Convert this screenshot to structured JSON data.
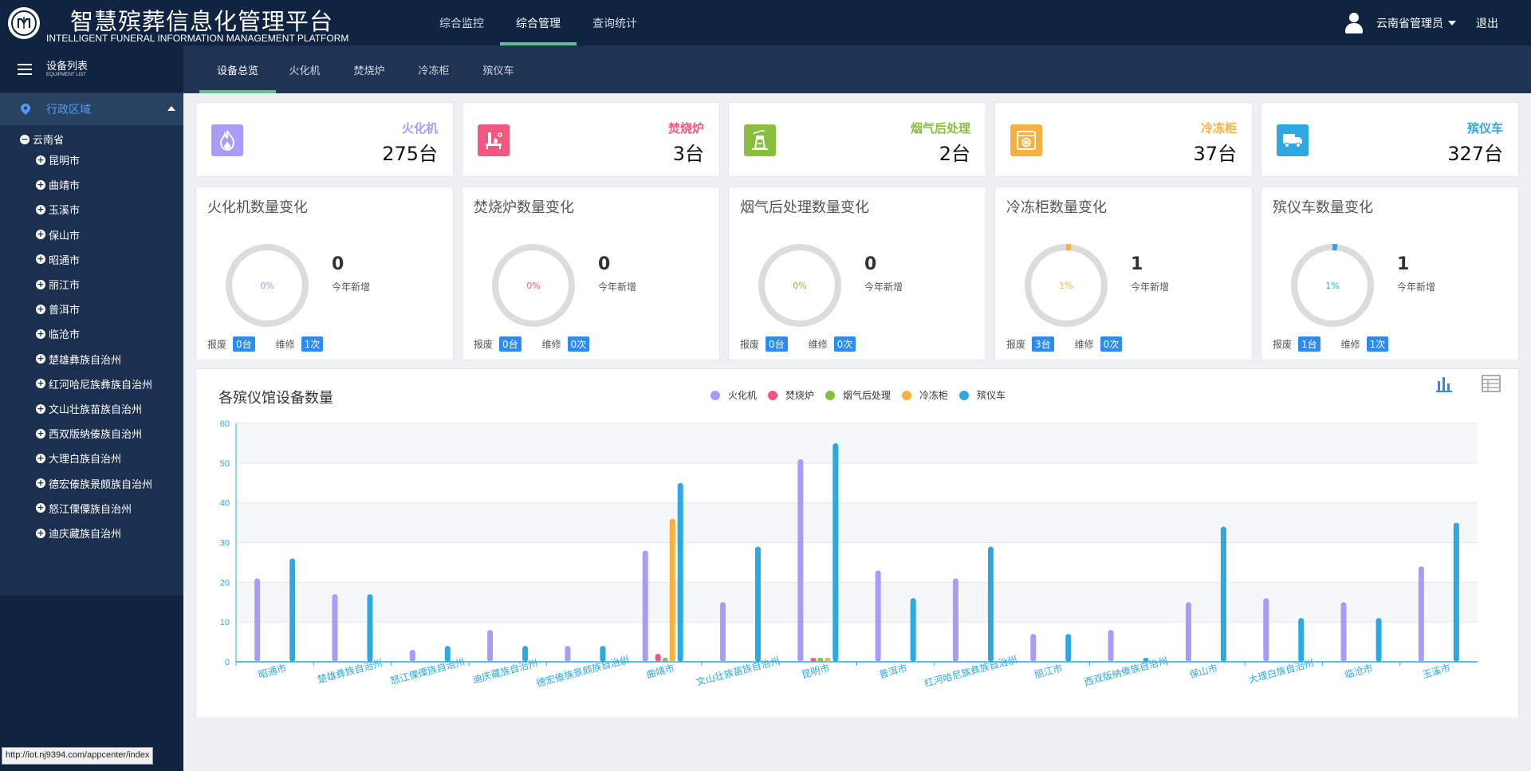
{
  "header": {
    "title": "智慧殡葬信息化管理平台",
    "subtitle": "INTELLIGENT FUNERAL INFORMATION MANAGEMENT PLATFORM",
    "nav": [
      "综合监控",
      "综合管理",
      "查询统计"
    ],
    "user": "云南省管理员",
    "logout": "退出"
  },
  "sidebar": {
    "title": "设备列表",
    "title_en": "EQUIPMENT LIST",
    "region_label": "行政区域",
    "root": "云南省",
    "items": [
      "昆明市",
      "曲靖市",
      "玉溪市",
      "保山市",
      "昭通市",
      "丽江市",
      "普洱市",
      "临沧市",
      "楚雄彝族自治州",
      "红河哈尼族彝族自治州",
      "文山壮族苗族自治州",
      "西双版纳傣族自治州",
      "大理白族自治州",
      "德宏傣族景颇族自治州",
      "怒江傈僳族自治州",
      "迪庆藏族自治州"
    ]
  },
  "status_url": "http://iot.nj9394.com/appcenter/index",
  "tabs": [
    "设备总览",
    "火化机",
    "焚烧炉",
    "冷冻柜",
    "殡仪车"
  ],
  "stats": [
    {
      "label": "火化机",
      "value": "275台",
      "color": "#a99cf6",
      "icon": "fire-icon"
    },
    {
      "label": "焚烧炉",
      "value": "3台",
      "color": "#f3587e",
      "icon": "incinerator-icon"
    },
    {
      "label": "烟气后处理",
      "value": "2台",
      "color": "#8bbd3f",
      "icon": "smoke-treatment-icon"
    },
    {
      "label": "冷冻柜",
      "value": "37台",
      "color": "#f9b03c",
      "icon": "freezer-icon"
    },
    {
      "label": "殡仪车",
      "value": "327台",
      "color": "#2ea8e0",
      "icon": "hearse-truck-icon"
    }
  ],
  "rings": [
    {
      "title": "火化机数量变化",
      "pct": "0%",
      "fraction": 0,
      "num": "0",
      "sub": "今年新增",
      "scrap_label": "报废",
      "scrap": "0台",
      "repair_label": "维修",
      "repair": "1次",
      "color": "#a99cf6"
    },
    {
      "title": "焚烧炉数量变化",
      "pct": "0%",
      "fraction": 0,
      "num": "0",
      "sub": "今年新增",
      "scrap_label": "报废",
      "scrap": "0台",
      "repair_label": "维修",
      "repair": "0次",
      "color": "#f3587e"
    },
    {
      "title": "烟气后处理数量变化",
      "pct": "0%",
      "fraction": 0,
      "num": "0",
      "sub": "今年新增",
      "scrap_label": "报废",
      "scrap": "0台",
      "repair_label": "维修",
      "repair": "0次",
      "color": "#8bbd3f"
    },
    {
      "title": "冷冻柜数量变化",
      "pct": "1%",
      "fraction": 0.01,
      "num": "1",
      "sub": "今年新增",
      "scrap_label": "报废",
      "scrap": "3台",
      "repair_label": "维修",
      "repair": "0次",
      "color": "#f9b03c"
    },
    {
      "title": "殡仪车数量变化",
      "pct": "1%",
      "fraction": 0.01,
      "num": "1",
      "sub": "今年新增",
      "scrap_label": "报废",
      "scrap": "1台",
      "repair_label": "维修",
      "repair": "1次",
      "color": "#2ea8e0"
    }
  ],
  "chart_data": {
    "type": "bar",
    "title": "各殡仪馆设备数量",
    "ylim": [
      0,
      60
    ],
    "yticks": [
      0,
      10,
      20,
      30,
      40,
      50,
      60
    ],
    "grid": true,
    "legend_position": "top-center",
    "categories": [
      "昭通市",
      "楚雄彝族自治州",
      "怒江傈僳族自治州",
      "迪庆藏族自治州",
      "德宏傣族景颇族自治州",
      "曲靖市",
      "文山壮族苗族自治州",
      "昆明市",
      "普洱市",
      "红河哈尼族彝族自治州",
      "丽江市",
      "西双版纳傣族自治州",
      "保山市",
      "大理白族自治州",
      "临沧市",
      "玉溪市"
    ],
    "series": [
      {
        "name": "火化机",
        "color": "#a99cf6",
        "values": [
          21,
          17,
          3,
          8,
          4,
          28,
          15,
          51,
          23,
          21,
          7,
          8,
          15,
          16,
          15,
          24
        ]
      },
      {
        "name": "焚烧炉",
        "color": "#f3587e",
        "values": [
          0,
          0,
          0,
          0,
          0,
          2,
          0,
          1,
          0,
          0,
          0,
          0,
          0,
          0,
          0,
          0
        ]
      },
      {
        "name": "烟气后处理",
        "color": "#8bbd3f",
        "values": [
          0,
          0,
          0,
          0,
          0,
          1,
          0,
          1,
          0,
          0,
          0,
          0,
          0,
          0,
          0,
          0
        ]
      },
      {
        "name": "冷冻柜",
        "color": "#f9b03c",
        "values": [
          0,
          0,
          0,
          0,
          0,
          36,
          0,
          1,
          0,
          0,
          0,
          0,
          0,
          0,
          0,
          0
        ]
      },
      {
        "name": "殡仪车",
        "color": "#2ea8e0",
        "values": [
          26,
          17,
          4,
          4,
          4,
          45,
          29,
          55,
          16,
          29,
          7,
          1,
          34,
          11,
          11,
          35
        ]
      }
    ]
  }
}
